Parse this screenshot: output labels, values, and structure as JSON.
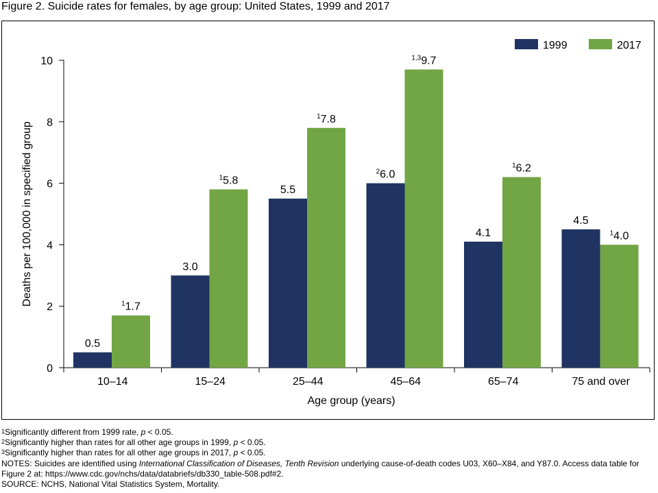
{
  "figure": {
    "title": "Figure 2. Suicide rates for females, by age group: United States, 1999 and 2017"
  },
  "colors": {
    "series_1999": "#1f3462",
    "series_2017": "#72a544"
  },
  "chart_data": {
    "type": "bar",
    "title": "",
    "xlabel": "Age group (years)",
    "ylabel": "Deaths per 100,000 in specified group",
    "ylim": [
      0,
      10
    ],
    "yticks": [
      "0",
      "2",
      "4",
      "6",
      "8",
      "10"
    ],
    "grid": false,
    "legend_position": "top-right",
    "categories": [
      "10–14",
      "15–24",
      "25–44",
      "45–64",
      "65–74",
      "75 and over"
    ],
    "series": [
      {
        "name": "1999",
        "color": "#1f3462",
        "values": [
          0.5,
          3.0,
          5.5,
          6.0,
          4.1,
          4.5
        ],
        "labels": [
          "0.5",
          "3.0",
          "5.5",
          "6.0",
          "4.1",
          "4.5"
        ],
        "marks": [
          "",
          "",
          "",
          "2",
          "",
          ""
        ]
      },
      {
        "name": "2017",
        "color": "#72a544",
        "values": [
          1.7,
          5.8,
          7.8,
          9.7,
          6.2,
          4.0
        ],
        "labels": [
          "1.7",
          "5.8",
          "7.8",
          "9.7",
          "6.2",
          "4.0"
        ],
        "marks": [
          "1",
          "1",
          "1",
          "1,3",
          "1",
          "1"
        ]
      }
    ]
  },
  "notes": {
    "fn1": {
      "mark": "1",
      "text": "Significantly different from 1999 rate, ",
      "p": "p",
      "tail": " < 0.05."
    },
    "fn2": {
      "mark": "2",
      "text": "Significantly higher than rates for all other age groups in 1999, ",
      "p": "p",
      "tail": " < 0.05."
    },
    "fn3": {
      "mark": "3",
      "text": "Significantly higher than rates for all other age groups in 2017, ",
      "p": "p",
      "tail": " < 0.05."
    },
    "notes_lead": "NOTES: Suicides are identified using ",
    "notes_italic": "International Classification of Diseases, Tenth Revision",
    "notes_rest": " underlying cause-of-death codes U03, X60–X84, and Y87.0. Access data table for Figure 2 at: https://www.cdc.gov/nchs/data/databriefs/db330_table-508.pdf#2.",
    "source": "SOURCE: NCHS, National Vital Statistics System, Mortality."
  }
}
